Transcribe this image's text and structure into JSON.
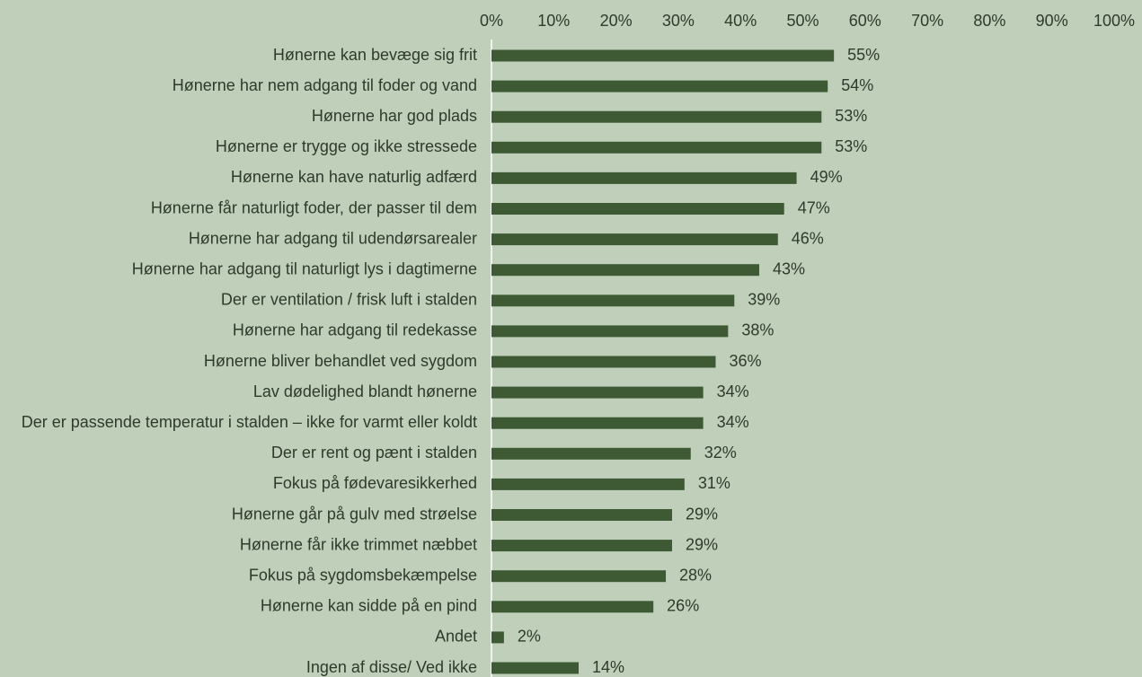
{
  "chart_data": {
    "type": "bar",
    "orientation": "horizontal",
    "title": "",
    "xlabel": "",
    "ylabel": "",
    "xlim": [
      0,
      100
    ],
    "x_ticks": [
      "0%",
      "10%",
      "20%",
      "30%",
      "40%",
      "50%",
      "60%",
      "70%",
      "80%",
      "90%",
      "100%"
    ],
    "x_axis_position": "top",
    "grid": false,
    "legend": "none",
    "value_suffix": "%",
    "colors": {
      "background": "#bfcfb9",
      "bar": "#3d5a35",
      "text": "#2f3a2c",
      "axis": "#ffffff"
    },
    "categories": [
      "Hønerne kan bevæge sig frit",
      "Hønerne har nem adgang til foder og vand",
      "Hønerne har god plads",
      "Hønerne er trygge og ikke stressede",
      "Hønerne kan have naturlig adfærd",
      "Hønerne får naturligt foder, der passer til dem",
      "Hønerne har adgang til udendørsarealer",
      "Hønerne har adgang til naturligt lys i dagtimerne",
      "Der er ventilation / frisk luft i stalden",
      "Hønerne har adgang til redekasse",
      "Hønerne bliver behandlet ved sygdom",
      "Lav dødelighed blandt hønerne",
      "Der er passende temperatur i stalden – ikke for varmt eller koldt",
      "Der er rent og pænt i stalden",
      "Fokus på fødevaresikkerhed",
      "Hønerne går på gulv med strøelse",
      "Hønerne får ikke trimmet næbbet",
      "Fokus på sygdomsbekæmpelse",
      "Hønerne kan sidde på en pind",
      "Andet",
      "Ingen af disse/ Ved ikke"
    ],
    "values": [
      55,
      54,
      53,
      53,
      49,
      47,
      46,
      43,
      39,
      38,
      36,
      34,
      34,
      32,
      31,
      29,
      29,
      28,
      26,
      2,
      14
    ],
    "value_labels": [
      "55%",
      "54%",
      "53%",
      "53%",
      "49%",
      "47%",
      "46%",
      "43%",
      "39%",
      "38%",
      "36%",
      "34%",
      "34%",
      "32%",
      "31%",
      "29%",
      "29%",
      "28%",
      "26%",
      "2%",
      "14%"
    ]
  }
}
